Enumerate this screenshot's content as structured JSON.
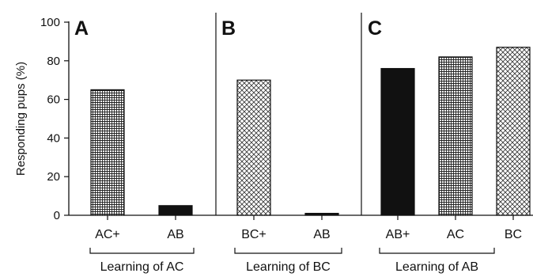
{
  "chart_data": {
    "type": "bar",
    "ylabel": "Responding pups (%)",
    "ylim": [
      0,
      100
    ],
    "yticks": [
      0,
      20,
      40,
      60,
      80,
      100
    ],
    "grid": false,
    "panels": [
      {
        "label": "A",
        "group_label": "Learning of AC",
        "categories": [
          "AC+",
          "AB"
        ],
        "values": [
          65,
          5
        ],
        "patterns": [
          "grid",
          "solid"
        ]
      },
      {
        "label": "B",
        "group_label": "Learning of BC",
        "categories": [
          "BC+",
          "AB"
        ],
        "values": [
          70,
          1
        ],
        "patterns": [
          "crosshatch",
          "solid"
        ]
      },
      {
        "label": "C",
        "group_label": "Learning of AB",
        "categories": [
          "AB+",
          "AC",
          "BC"
        ],
        "values": [
          76,
          82,
          87
        ],
        "patterns": [
          "solid",
          "grid",
          "crosshatch"
        ]
      }
    ]
  }
}
